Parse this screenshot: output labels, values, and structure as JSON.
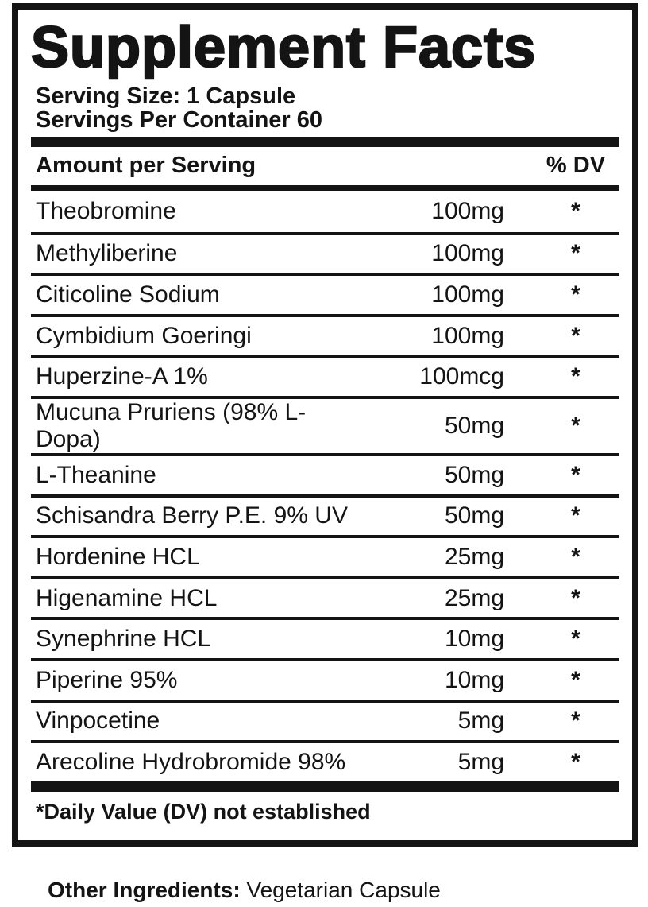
{
  "label": {
    "title": "Supplement Facts",
    "serving_size": "Serving Size: 1 Capsule",
    "servings_per_container": "Servings Per Container 60",
    "header": {
      "amount_label": "Amount per Serving",
      "dv_label": "% DV"
    },
    "rows": [
      {
        "name": "Theobromine",
        "amount": "100mg",
        "dv": "*"
      },
      {
        "name": "Methyliberine",
        "amount": "100mg",
        "dv": "*"
      },
      {
        "name": "Citicoline Sodium",
        "amount": "100mg",
        "dv": "*"
      },
      {
        "name": "Cymbidium Goeringi",
        "amount": "100mg",
        "dv": "*"
      },
      {
        "name": "Huperzine-A 1%",
        "amount": "100mcg",
        "dv": "*"
      },
      {
        "name": "Mucuna Pruriens (98% L-Dopa)",
        "amount": "50mg",
        "dv": "*"
      },
      {
        "name": "L-Theanine",
        "amount": "50mg",
        "dv": "*"
      },
      {
        "name": "Schisandra Berry P.E. 9% UV",
        "amount": "50mg",
        "dv": "*"
      },
      {
        "name": "Hordenine HCL",
        "amount": "25mg",
        "dv": "*"
      },
      {
        "name": "Higenamine HCL",
        "amount": "25mg",
        "dv": "*"
      },
      {
        "name": "Synephrine HCL",
        "amount": "10mg",
        "dv": "*"
      },
      {
        "name": "Piperine 95%",
        "amount": "10mg",
        "dv": "*"
      },
      {
        "name": "Vinpocetine",
        "amount": "5mg",
        "dv": "*"
      },
      {
        "name": "Arecoline Hydrobromide 98%",
        "amount": "5mg",
        "dv": "*"
      }
    ],
    "footnote": "*Daily Value (DV) not established",
    "other_ingredients": {
      "label": "Other Ingredients:",
      "value": " Vegetarian Capsule"
    },
    "colors": {
      "ink": "#141414",
      "background": "#ffffff"
    }
  }
}
